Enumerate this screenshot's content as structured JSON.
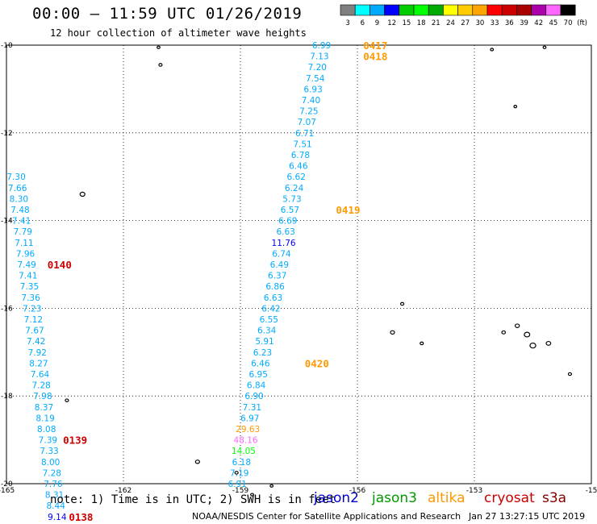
{
  "title": "00:00 – 11:59 UTC 01/26/2019",
  "subtitle": "12 hour collection of altimeter wave heights",
  "colorbar": {
    "values": [
      "3",
      "6",
      "9",
      "12",
      "15",
      "18",
      "21",
      "24",
      "27",
      "30",
      "33",
      "36",
      "39",
      "42",
      "45",
      "70"
    ],
    "unit": "(ft)",
    "colors": [
      "#808080",
      "#00ffff",
      "#00aaff",
      "#0000ff",
      "#00cc00",
      "#00ff00",
      "#00aa00",
      "#ffff00",
      "#ffcc00",
      "#ffa500",
      "#ff0000",
      "#cc0000",
      "#aa0000",
      "#aa00aa",
      "#ff66ff",
      "#000000"
    ]
  },
  "note": "note: 1) Time is in UTC; 2) SWH is in feet",
  "credit": "NOAA/NESDIS Center for Satellite Applications and Research",
  "stamp": "Jan 27 13:27:15 UTC 2019",
  "legend": [
    {
      "name": "jason2",
      "color": "#0000cc"
    },
    {
      "name": "jason3",
      "color": "#009900"
    },
    {
      "name": "altika",
      "color": "#ff9900"
    },
    {
      "name": "cryosat",
      "color": "#cc0000"
    },
    {
      "name": "s3a",
      "color": "#800000"
    }
  ],
  "chart_data": {
    "type": "scatter",
    "title": "00:00 – 11:59 UTC 01/26/2019",
    "subtitle": "12 hour collection of altimeter wave heights",
    "xlim": [
      -165,
      -150
    ],
    "ylim": [
      -20,
      -10
    ],
    "x_ticks": [
      "-165",
      "-162",
      "-159",
      "-156",
      "-153",
      "-15"
    ],
    "y_ticks": [
      "-10",
      "-12",
      "-14",
      "-16",
      "-18",
      "-20"
    ],
    "grid": true,
    "series": [
      {
        "name": "altika",
        "track_lon_start": -156.92,
        "track_lon_end": -159.08,
        "points": [
          {
            "lat": -10.0,
            "v": "6.99",
            "c": "#00aaff"
          },
          {
            "lat": -10.25,
            "v": "7.13",
            "c": "#00aaff"
          },
          {
            "lat": -10.5,
            "v": "7.20",
            "c": "#00aaff"
          },
          {
            "lat": -10.75,
            "v": "7.54",
            "c": "#00aaff"
          },
          {
            "lat": -11.0,
            "v": "6.93",
            "c": "#00aaff"
          },
          {
            "lat": -11.25,
            "v": "7.40",
            "c": "#00aaff"
          },
          {
            "lat": -11.5,
            "v": "7.25",
            "c": "#00aaff"
          },
          {
            "lat": -11.75,
            "v": "7.07",
            "c": "#00aaff"
          },
          {
            "lat": -12.0,
            "v": "6.71",
            "c": "#00aaff"
          },
          {
            "lat": -12.25,
            "v": "7.51",
            "c": "#00aaff"
          },
          {
            "lat": -12.5,
            "v": "6.78",
            "c": "#00aaff"
          },
          {
            "lat": -12.75,
            "v": "6.46",
            "c": "#00aaff"
          },
          {
            "lat": -13.0,
            "v": "6.62",
            "c": "#00aaff"
          },
          {
            "lat": -13.25,
            "v": "6.24",
            "c": "#00aaff"
          },
          {
            "lat": -13.5,
            "v": "5.73",
            "c": "#00aaff"
          },
          {
            "lat": -13.75,
            "v": "6.57",
            "c": "#00aaff"
          },
          {
            "lat": -14.0,
            "v": "6.69",
            "c": "#00aaff"
          },
          {
            "lat": -14.25,
            "v": "6.63",
            "c": "#00aaff"
          },
          {
            "lat": -14.5,
            "v": "11.76",
            "c": "#0000ff"
          },
          {
            "lat": -14.75,
            "v": "6.74",
            "c": "#00aaff"
          },
          {
            "lat": -15.0,
            "v": "6.49",
            "c": "#00aaff"
          },
          {
            "lat": -15.25,
            "v": "6.37",
            "c": "#00aaff"
          },
          {
            "lat": -15.5,
            "v": "6.86",
            "c": "#00aaff"
          },
          {
            "lat": -15.75,
            "v": "6.63",
            "c": "#00aaff"
          },
          {
            "lat": -16.0,
            "v": "6.42",
            "c": "#00aaff"
          },
          {
            "lat": -16.25,
            "v": "6.55",
            "c": "#00aaff"
          },
          {
            "lat": -16.5,
            "v": "6.34",
            "c": "#00aaff"
          },
          {
            "lat": -16.75,
            "v": "5.91",
            "c": "#00aaff"
          },
          {
            "lat": -17.0,
            "v": "6.23",
            "c": "#00aaff"
          },
          {
            "lat": -17.25,
            "v": "6.46",
            "c": "#00aaff"
          },
          {
            "lat": -17.5,
            "v": "6.95",
            "c": "#00aaff"
          },
          {
            "lat": -17.75,
            "v": "6.84",
            "c": "#00aaff"
          },
          {
            "lat": -18.0,
            "v": "6.90",
            "c": "#00aaff"
          },
          {
            "lat": -18.25,
            "v": "7.31",
            "c": "#00aaff"
          },
          {
            "lat": -18.5,
            "v": "6.97",
            "c": "#00aaff"
          },
          {
            "lat": -18.75,
            "v": "29.63",
            "c": "#ff9900"
          },
          {
            "lat": -19.0,
            "v": "48.16",
            "c": "#ff66ff"
          },
          {
            "lat": -19.25,
            "v": "14.05",
            "c": "#00ff00"
          },
          {
            "lat": -19.5,
            "v": "6.18",
            "c": "#00aaff"
          },
          {
            "lat": -19.75,
            "v": "7.19",
            "c": "#00aaff"
          },
          {
            "lat": -20.0,
            "v": "6.91",
            "c": "#00aaff"
          }
        ],
        "passes": [
          {
            "label": "0417",
            "lat": -10.0,
            "lon": -155.85
          },
          {
            "label": "0418",
            "lat": -10.25,
            "lon": -155.85
          },
          {
            "label": "0419",
            "lat": -13.75,
            "lon": -156.55
          },
          {
            "label": "0420",
            "lat": -17.25,
            "lon": -157.35
          }
        ]
      },
      {
        "name": "cryosat",
        "track_lon_start": -164.75,
        "track_lon_end": -163.7,
        "points": [
          {
            "lat": -13.0,
            "v": "7.30",
            "c": "#00aaff"
          },
          {
            "lat": -13.25,
            "v": "7.66",
            "c": "#00aaff"
          },
          {
            "lat": -13.5,
            "v": "8.30",
            "c": "#00aaff"
          },
          {
            "lat": -13.75,
            "v": "7.48",
            "c": "#00aaff"
          },
          {
            "lat": -14.0,
            "v": "7.41",
            "c": "#00aaff"
          },
          {
            "lat": -14.25,
            "v": "7.79",
            "c": "#00aaff"
          },
          {
            "lat": -14.5,
            "v": "7.11",
            "c": "#00aaff"
          },
          {
            "lat": -14.75,
            "v": "7.96",
            "c": "#00aaff"
          },
          {
            "lat": -15.0,
            "v": "7.49",
            "c": "#00aaff"
          },
          {
            "lat": -15.25,
            "v": "7.41",
            "c": "#00aaff"
          },
          {
            "lat": -15.5,
            "v": "7.35",
            "c": "#00aaff"
          },
          {
            "lat": -15.75,
            "v": "7.36",
            "c": "#00aaff"
          },
          {
            "lat": -16.0,
            "v": "7.23",
            "c": "#00aaff"
          },
          {
            "lat": -16.25,
            "v": "7.12",
            "c": "#00aaff"
          },
          {
            "lat": -16.5,
            "v": "7.67",
            "c": "#00aaff"
          },
          {
            "lat": -16.75,
            "v": "7.42",
            "c": "#00aaff"
          },
          {
            "lat": -17.0,
            "v": "7.92",
            "c": "#00aaff"
          },
          {
            "lat": -17.25,
            "v": "8.27",
            "c": "#00aaff"
          },
          {
            "lat": -17.5,
            "v": "7.64",
            "c": "#00aaff"
          },
          {
            "lat": -17.75,
            "v": "7.28",
            "c": "#00aaff"
          },
          {
            "lat": -18.0,
            "v": "7.98",
            "c": "#00aaff"
          },
          {
            "lat": -18.25,
            "v": "8.37",
            "c": "#00aaff"
          },
          {
            "lat": -18.5,
            "v": "8.19",
            "c": "#00aaff"
          },
          {
            "lat": -18.75,
            "v": "8.08",
            "c": "#00aaff"
          },
          {
            "lat": -19.0,
            "v": "7.39",
            "c": "#00aaff"
          },
          {
            "lat": -19.25,
            "v": "7.33",
            "c": "#00aaff"
          },
          {
            "lat": -19.5,
            "v": "8.00",
            "c": "#00aaff"
          },
          {
            "lat": -19.75,
            "v": "7.28",
            "c": "#00aaff"
          },
          {
            "lat": -20.0,
            "v": "7.76",
            "c": "#00aaff"
          },
          {
            "lat": -20.25,
            "v": "8.31",
            "c": "#00aaff"
          },
          {
            "lat": -20.5,
            "v": "8.44",
            "c": "#00aaff"
          },
          {
            "lat": -20.75,
            "v": "9.14",
            "c": "#0000ff"
          }
        ],
        "passes": [
          {
            "label": "0140",
            "lat": -15.0,
            "lon": -163.95
          },
          {
            "label": "0139",
            "lat": -19.0,
            "lon": -163.55
          },
          {
            "label": "0138",
            "lat": -20.75,
            "lon": -163.4
          }
        ]
      }
    ]
  }
}
